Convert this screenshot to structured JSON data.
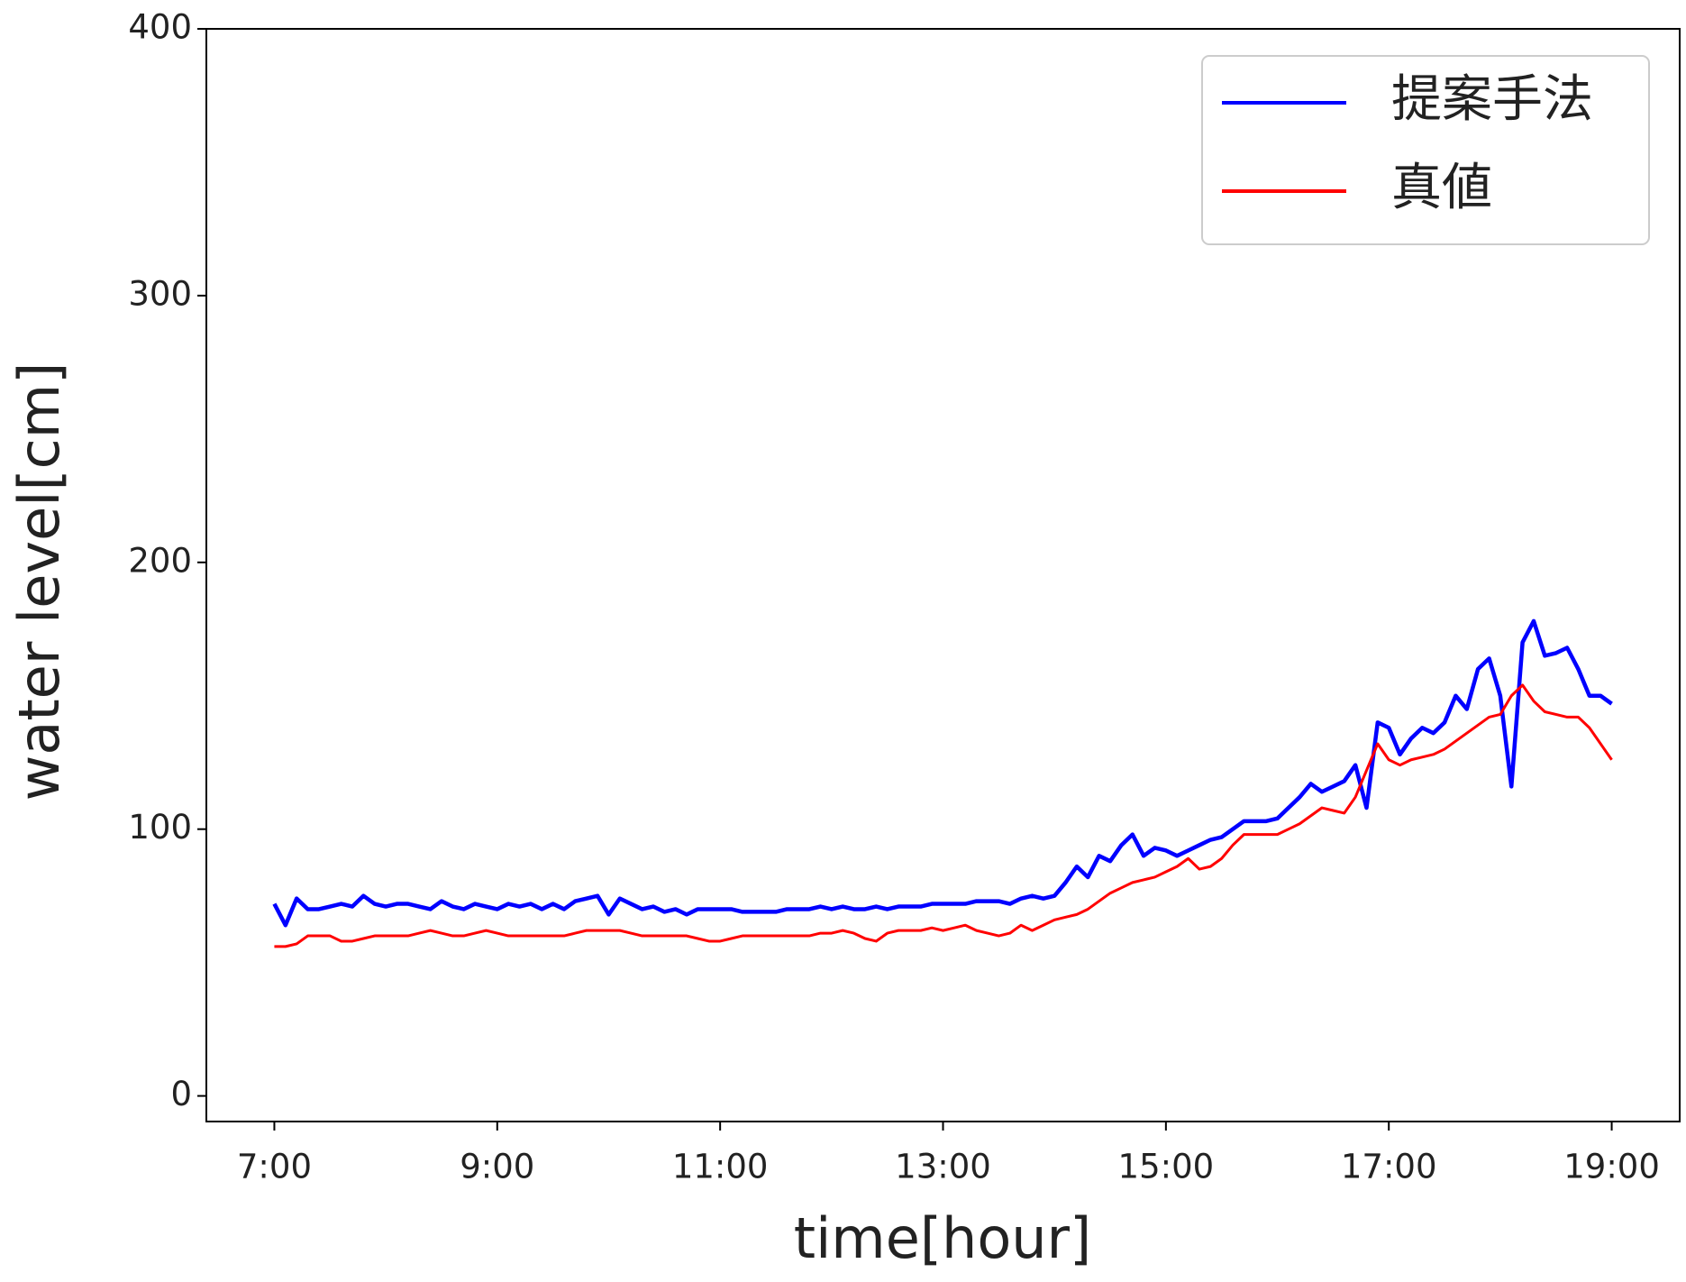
{
  "chart_data": {
    "type": "line",
    "x_label": "time[hour]",
    "y_label": "water level[cm]",
    "x": [
      7,
      7.1,
      7.2,
      7.3,
      7.4,
      7.5,
      7.6,
      7.7,
      7.8,
      7.9,
      8,
      8.1,
      8.2,
      8.3,
      8.4,
      8.5,
      8.6,
      8.7,
      8.8,
      8.9,
      9,
      9.1,
      9.2,
      9.3,
      9.4,
      9.5,
      9.6,
      9.7,
      9.8,
      9.9,
      10,
      10.1,
      10.2,
      10.3,
      10.4,
      10.5,
      10.6,
      10.7,
      10.8,
      10.9,
      11,
      11.1,
      11.2,
      11.3,
      11.4,
      11.5,
      11.6,
      11.7,
      11.8,
      11.9,
      12,
      12.1,
      12.2,
      12.3,
      12.4,
      12.5,
      12.6,
      12.7,
      12.8,
      12.9,
      13,
      13.1,
      13.2,
      13.3,
      13.4,
      13.5,
      13.6,
      13.7,
      13.8,
      13.9,
      14,
      14.1,
      14.2,
      14.3,
      14.4,
      14.5,
      14.6,
      14.7,
      14.8,
      14.9,
      15,
      15.1,
      15.2,
      15.3,
      15.4,
      15.5,
      15.6,
      15.7,
      15.8,
      15.9,
      16,
      16.1,
      16.2,
      16.3,
      16.4,
      16.5,
      16.6,
      16.7,
      16.8,
      16.9,
      17,
      17.1,
      17.2,
      17.3,
      17.4,
      17.5,
      17.6,
      17.7,
      17.8,
      17.9,
      18,
      18.1,
      18.2,
      18.3,
      18.4,
      18.5,
      18.6,
      18.7,
      18.8,
      18.9,
      19
    ],
    "series": [
      {
        "name": "提案手法",
        "color": "#0000ff",
        "width": 4.5,
        "values": [
          72,
          64,
          74,
          70,
          70,
          71,
          72,
          71,
          75,
          72,
          71,
          72,
          72,
          71,
          70,
          73,
          71,
          70,
          72,
          71,
          70,
          72,
          71,
          72,
          70,
          72,
          70,
          73,
          74,
          75,
          68,
          74,
          72,
          70,
          71,
          69,
          70,
          68,
          70,
          70,
          70,
          70,
          69,
          69,
          69,
          69,
          70,
          70,
          70,
          71,
          70,
          71,
          70,
          70,
          71,
          70,
          71,
          71,
          71,
          72,
          72,
          72,
          72,
          73,
          73,
          73,
          72,
          74,
          75,
          74,
          75,
          80,
          86,
          82,
          90,
          88,
          94,
          98,
          90,
          93,
          92,
          90,
          92,
          94,
          96,
          97,
          100,
          103,
          103,
          103,
          104,
          108,
          112,
          117,
          114,
          116,
          118,
          124,
          108,
          140,
          138,
          128,
          134,
          138,
          136,
          140,
          150,
          145,
          160,
          164,
          150,
          116,
          170,
          178,
          165,
          166,
          168,
          160,
          150,
          150,
          147
        ]
      },
      {
        "name": "真値",
        "color": "#ff0000",
        "width": 3,
        "values": [
          56,
          56,
          57,
          60,
          60,
          60,
          58,
          58,
          59,
          60,
          60,
          60,
          60,
          61,
          62,
          61,
          60,
          60,
          61,
          62,
          61,
          60,
          60,
          60,
          60,
          60,
          60,
          61,
          62,
          62,
          62,
          62,
          61,
          60,
          60,
          60,
          60,
          60,
          59,
          58,
          58,
          59,
          60,
          60,
          60,
          60,
          60,
          60,
          60,
          61,
          61,
          62,
          61,
          59,
          58,
          61,
          62,
          62,
          62,
          63,
          62,
          63,
          64,
          62,
          61,
          60,
          61,
          64,
          62,
          64,
          66,
          67,
          68,
          70,
          73,
          76,
          78,
          80,
          81,
          82,
          84,
          86,
          89,
          85,
          86,
          89,
          94,
          98,
          98,
          98,
          98,
          100,
          102,
          105,
          108,
          107,
          106,
          112,
          122,
          132,
          126,
          124,
          126,
          127,
          128,
          130,
          133,
          136,
          139,
          142,
          143,
          150,
          154,
          148,
          144,
          143,
          142,
          142,
          138,
          132,
          126
        ]
      }
    ],
    "xlim": [
      6.39,
      19.61
    ],
    "xticks": [
      {
        "value": 7,
        "label": "7:00"
      },
      {
        "value": 9,
        "label": "9:00"
      },
      {
        "value": 11,
        "label": "11:00"
      },
      {
        "value": 13,
        "label": "13:00"
      },
      {
        "value": 15,
        "label": "15:00"
      },
      {
        "value": 17,
        "label": "17:00"
      },
      {
        "value": 19,
        "label": "19:00"
      }
    ],
    "ylim": [
      -9.6,
      400
    ],
    "yticks": [
      0,
      100,
      200,
      300,
      400
    ],
    "legend": "upper right"
  }
}
